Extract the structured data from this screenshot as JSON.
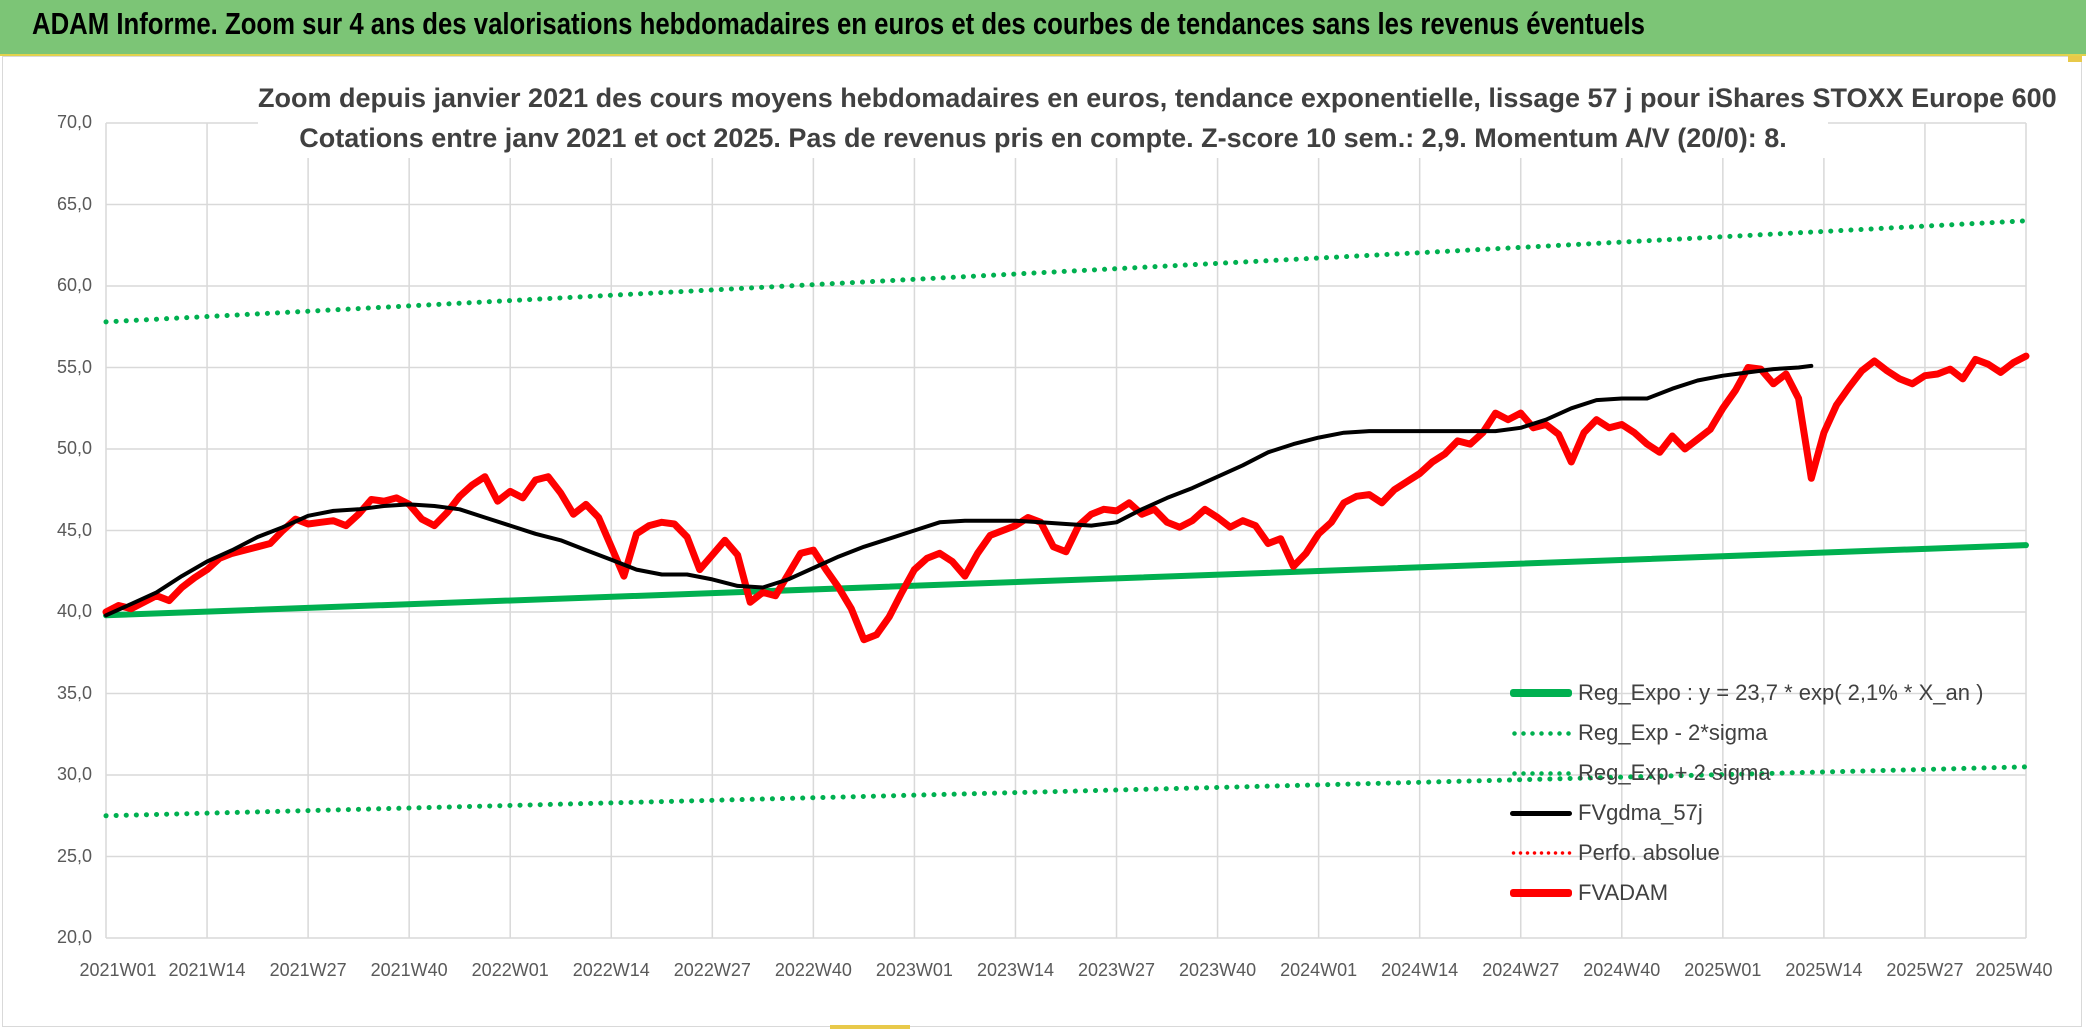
{
  "header": {
    "title": "ADAM Informe. Zoom sur 4 ans des valorisations hebdomadaires en euros et des courbes de tendances sans les revenus éventuels"
  },
  "colors": {
    "banner_bg": "#7cc576",
    "reg_expo": "#00b050",
    "fvgdma": "#000000",
    "fvadam": "#ff0000",
    "perfo": "#ff0000"
  },
  "chart_data": {
    "type": "line",
    "title_line1": "Zoom depuis janvier 2021 des cours moyens hebdomadaires en euros, tendance exponentielle, lissage 57 j pour iShares STOXX Europe 600",
    "title_line2": "Cotations entre janv 2021 et oct 2025. Pas de revenus pris en compte. Z-score 10 sem.: 2,9. Momentum A/V (20/0): 8.",
    "ylim": [
      20,
      70
    ],
    "grid": true,
    "legend_position": "bottom-right",
    "y_ticks": [
      "70,0",
      "65,0",
      "60,0",
      "55,0",
      "50,0",
      "45,0",
      "40,0",
      "35,0",
      "30,0",
      "25,0",
      "20,0"
    ],
    "x_ticks": [
      "2021W01",
      "2021W14",
      "2021W27",
      "2021W40",
      "2022W01",
      "2022W14",
      "2022W27",
      "2022W40",
      "2023W01",
      "2023W14",
      "2023W27",
      "2023W40",
      "2024W01",
      "2024W14",
      "2024W27",
      "2024W40",
      "2025W01",
      "2025W14",
      "2025W27",
      "2025W40"
    ],
    "legend": [
      {
        "key": "reg_expo",
        "label": "Reg_Expo : y = 23,7 * exp( 2,1% *  X_an )"
      },
      {
        "key": "reg_minus",
        "label": "Reg_Exp - 2*sigma"
      },
      {
        "key": "reg_plus",
        "label": "Reg_Exp + 2 sigma"
      },
      {
        "key": "fvgdma",
        "label": "FVgdma_57j"
      },
      {
        "key": "perfo",
        "label": "Perfo. absolue"
      },
      {
        "key": "fvadam",
        "label": "FVADAM"
      }
    ],
    "series": [
      {
        "key": "reg_expo",
        "name": "Reg_Expo : y = 23,7 * exp( 2,1% *  X_an )",
        "start": 39.8,
        "end": 44.1
      },
      {
        "key": "reg_plus",
        "name": "Reg_Exp + 2 sigma",
        "start": 57.8,
        "end": 64.0
      },
      {
        "key": "reg_minus",
        "name": "Reg_Exp - 2*sigma",
        "start": 27.5,
        "end": 30.5
      },
      {
        "key": "fvgdma",
        "name": "FVgdma_57j",
        "points": [
          [
            0,
            39.8
          ],
          [
            4,
            40.5
          ],
          [
            8,
            41.2
          ],
          [
            12,
            42.2
          ],
          [
            16,
            43.1
          ],
          [
            20,
            43.8
          ],
          [
            24,
            44.6
          ],
          [
            28,
            45.2
          ],
          [
            32,
            45.9
          ],
          [
            36,
            46.2
          ],
          [
            40,
            46.3
          ],
          [
            44,
            46.5
          ],
          [
            48,
            46.6
          ],
          [
            52,
            46.5
          ],
          [
            56,
            46.3
          ],
          [
            60,
            45.8
          ],
          [
            64,
            45.3
          ],
          [
            68,
            44.8
          ],
          [
            72,
            44.4
          ],
          [
            76,
            43.8
          ],
          [
            80,
            43.2
          ],
          [
            84,
            42.6
          ],
          [
            88,
            42.3
          ],
          [
            92,
            42.3
          ],
          [
            96,
            42.0
          ],
          [
            100,
            41.6
          ],
          [
            104,
            41.5
          ],
          [
            108,
            42.0
          ],
          [
            112,
            42.7
          ],
          [
            116,
            43.4
          ],
          [
            120,
            44.0
          ],
          [
            124,
            44.5
          ],
          [
            128,
            45.0
          ],
          [
            132,
            45.5
          ],
          [
            136,
            45.6
          ],
          [
            140,
            45.6
          ],
          [
            144,
            45.6
          ],
          [
            148,
            45.5
          ],
          [
            152,
            45.4
          ],
          [
            156,
            45.3
          ],
          [
            160,
            45.5
          ],
          [
            164,
            46.3
          ],
          [
            168,
            47.0
          ],
          [
            172,
            47.6
          ],
          [
            176,
            48.3
          ],
          [
            180,
            49.0
          ],
          [
            184,
            49.8
          ],
          [
            188,
            50.3
          ],
          [
            192,
            50.7
          ],
          [
            196,
            51.0
          ],
          [
            200,
            51.1
          ],
          [
            204,
            51.1
          ],
          [
            208,
            51.1
          ],
          [
            212,
            51.1
          ],
          [
            216,
            51.1
          ],
          [
            220,
            51.1
          ],
          [
            224,
            51.3
          ],
          [
            228,
            51.8
          ],
          [
            232,
            52.5
          ],
          [
            236,
            53.0
          ],
          [
            240,
            53.1
          ],
          [
            244,
            53.1
          ],
          [
            248,
            53.7
          ],
          [
            252,
            54.2
          ],
          [
            256,
            54.5
          ],
          [
            260,
            54.7
          ],
          [
            264,
            54.9
          ],
          [
            268,
            55.0
          ],
          [
            270,
            55.1
          ]
        ]
      },
      {
        "key": "fvadam",
        "name": "FVADAM",
        "points": [
          [
            0,
            40.0
          ],
          [
            2,
            40.4
          ],
          [
            4,
            40.2
          ],
          [
            6,
            40.6
          ],
          [
            8,
            41.0
          ],
          [
            10,
            40.7
          ],
          [
            12,
            41.5
          ],
          [
            14,
            42.1
          ],
          [
            16,
            42.6
          ],
          [
            18,
            43.3
          ],
          [
            20,
            43.6
          ],
          [
            22,
            43.8
          ],
          [
            24,
            44.0
          ],
          [
            26,
            44.2
          ],
          [
            28,
            45.0
          ],
          [
            30,
            45.7
          ],
          [
            32,
            45.4
          ],
          [
            34,
            45.5
          ],
          [
            36,
            45.6
          ],
          [
            38,
            45.3
          ],
          [
            40,
            46.0
          ],
          [
            42,
            46.9
          ],
          [
            44,
            46.8
          ],
          [
            46,
            47.0
          ],
          [
            48,
            46.6
          ],
          [
            50,
            45.7
          ],
          [
            52,
            45.3
          ],
          [
            54,
            46.1
          ],
          [
            56,
            47.1
          ],
          [
            58,
            47.8
          ],
          [
            60,
            48.3
          ],
          [
            62,
            46.8
          ],
          [
            64,
            47.4
          ],
          [
            66,
            47.0
          ],
          [
            68,
            48.1
          ],
          [
            70,
            48.3
          ],
          [
            72,
            47.3
          ],
          [
            74,
            46.0
          ],
          [
            76,
            46.6
          ],
          [
            78,
            45.8
          ],
          [
            80,
            44.0
          ],
          [
            82,
            42.2
          ],
          [
            84,
            44.8
          ],
          [
            86,
            45.3
          ],
          [
            88,
            45.5
          ],
          [
            90,
            45.4
          ],
          [
            92,
            44.6
          ],
          [
            94,
            42.6
          ],
          [
            96,
            43.5
          ],
          [
            98,
            44.4
          ],
          [
            100,
            43.5
          ],
          [
            102,
            40.6
          ],
          [
            104,
            41.2
          ],
          [
            106,
            41.0
          ],
          [
            108,
            42.3
          ],
          [
            110,
            43.6
          ],
          [
            112,
            43.8
          ],
          [
            114,
            42.6
          ],
          [
            116,
            41.5
          ],
          [
            118,
            40.2
          ],
          [
            120,
            38.3
          ],
          [
            122,
            38.6
          ],
          [
            124,
            39.7
          ],
          [
            126,
            41.2
          ],
          [
            128,
            42.6
          ],
          [
            130,
            43.3
          ],
          [
            132,
            43.6
          ],
          [
            134,
            43.1
          ],
          [
            136,
            42.2
          ],
          [
            138,
            43.6
          ],
          [
            140,
            44.7
          ],
          [
            142,
            45.0
          ],
          [
            144,
            45.3
          ],
          [
            146,
            45.8
          ],
          [
            148,
            45.5
          ],
          [
            150,
            44.0
          ],
          [
            152,
            43.7
          ],
          [
            154,
            45.3
          ],
          [
            156,
            46.0
          ],
          [
            158,
            46.3
          ],
          [
            160,
            46.2
          ],
          [
            162,
            46.7
          ],
          [
            164,
            46.0
          ],
          [
            166,
            46.3
          ],
          [
            168,
            45.5
          ],
          [
            170,
            45.2
          ],
          [
            172,
            45.6
          ],
          [
            174,
            46.3
          ],
          [
            176,
            45.8
          ],
          [
            178,
            45.2
          ],
          [
            180,
            45.6
          ],
          [
            182,
            45.3
          ],
          [
            184,
            44.2
          ],
          [
            186,
            44.5
          ],
          [
            188,
            42.8
          ],
          [
            190,
            43.6
          ],
          [
            192,
            44.8
          ],
          [
            194,
            45.5
          ],
          [
            196,
            46.7
          ],
          [
            198,
            47.1
          ],
          [
            200,
            47.2
          ],
          [
            202,
            46.7
          ],
          [
            204,
            47.5
          ],
          [
            206,
            48.0
          ],
          [
            208,
            48.5
          ],
          [
            210,
            49.2
          ],
          [
            212,
            49.7
          ],
          [
            214,
            50.5
          ],
          [
            216,
            50.3
          ],
          [
            218,
            51.0
          ],
          [
            220,
            52.2
          ],
          [
            222,
            51.8
          ],
          [
            224,
            52.2
          ],
          [
            226,
            51.3
          ],
          [
            228,
            51.5
          ],
          [
            230,
            50.9
          ],
          [
            232,
            49.2
          ],
          [
            234,
            51.0
          ],
          [
            236,
            51.8
          ],
          [
            238,
            51.3
          ],
          [
            240,
            51.5
          ],
          [
            242,
            51.0
          ],
          [
            244,
            50.3
          ],
          [
            246,
            49.8
          ],
          [
            248,
            50.8
          ],
          [
            250,
            50.0
          ],
          [
            252,
            50.6
          ],
          [
            254,
            51.2
          ],
          [
            256,
            52.5
          ],
          [
            258,
            53.6
          ],
          [
            260,
            55.0
          ],
          [
            262,
            54.9
          ],
          [
            264,
            54.0
          ],
          [
            266,
            54.6
          ],
          [
            268,
            53.1
          ],
          [
            270,
            48.2
          ],
          [
            272,
            51.0
          ],
          [
            274,
            52.7
          ],
          [
            276,
            53.8
          ],
          [
            278,
            54.8
          ],
          [
            280,
            55.4
          ],
          [
            282,
            54.8
          ],
          [
            284,
            54.3
          ],
          [
            286,
            54.0
          ],
          [
            288,
            54.5
          ],
          [
            290,
            54.6
          ],
          [
            292,
            54.9
          ],
          [
            294,
            54.3
          ],
          [
            296,
            55.5
          ],
          [
            298,
            55.2
          ],
          [
            300,
            54.7
          ],
          [
            302,
            55.3
          ],
          [
            304,
            55.7
          ]
        ]
      }
    ],
    "x_max": 304
  }
}
